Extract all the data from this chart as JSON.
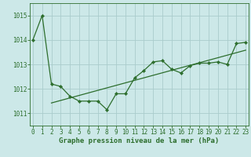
{
  "x": [
    0,
    1,
    2,
    3,
    4,
    5,
    6,
    7,
    8,
    9,
    10,
    11,
    12,
    13,
    14,
    15,
    16,
    17,
    18,
    19,
    20,
    21,
    22,
    23
  ],
  "y_main": [
    1014.0,
    1015.0,
    1012.2,
    1012.1,
    1011.7,
    1011.5,
    1011.5,
    1011.5,
    1011.15,
    1011.8,
    1011.8,
    1012.45,
    1012.75,
    1013.1,
    1013.15,
    1012.8,
    1012.65,
    1012.95,
    1013.05,
    1013.05,
    1013.1,
    1013.0,
    1013.85,
    1013.9
  ],
  "background_color": "#cce8e8",
  "grid_color": "#aacccc",
  "line_color": "#2d6e2d",
  "xlabel": "Graphe pression niveau de la mer (hPa)",
  "yticks": [
    1011,
    1012,
    1013,
    1014,
    1015
  ],
  "xticks": [
    0,
    1,
    2,
    3,
    4,
    5,
    6,
    7,
    8,
    9,
    10,
    11,
    12,
    13,
    14,
    15,
    16,
    17,
    18,
    19,
    20,
    21,
    22,
    23
  ],
  "ylim": [
    1010.5,
    1015.5
  ],
  "xlim": [
    -0.3,
    23.3
  ],
  "tick_fontsize": 5.5,
  "label_fontsize": 6.5,
  "trend_x_start": 2,
  "trend_x_end": 23
}
